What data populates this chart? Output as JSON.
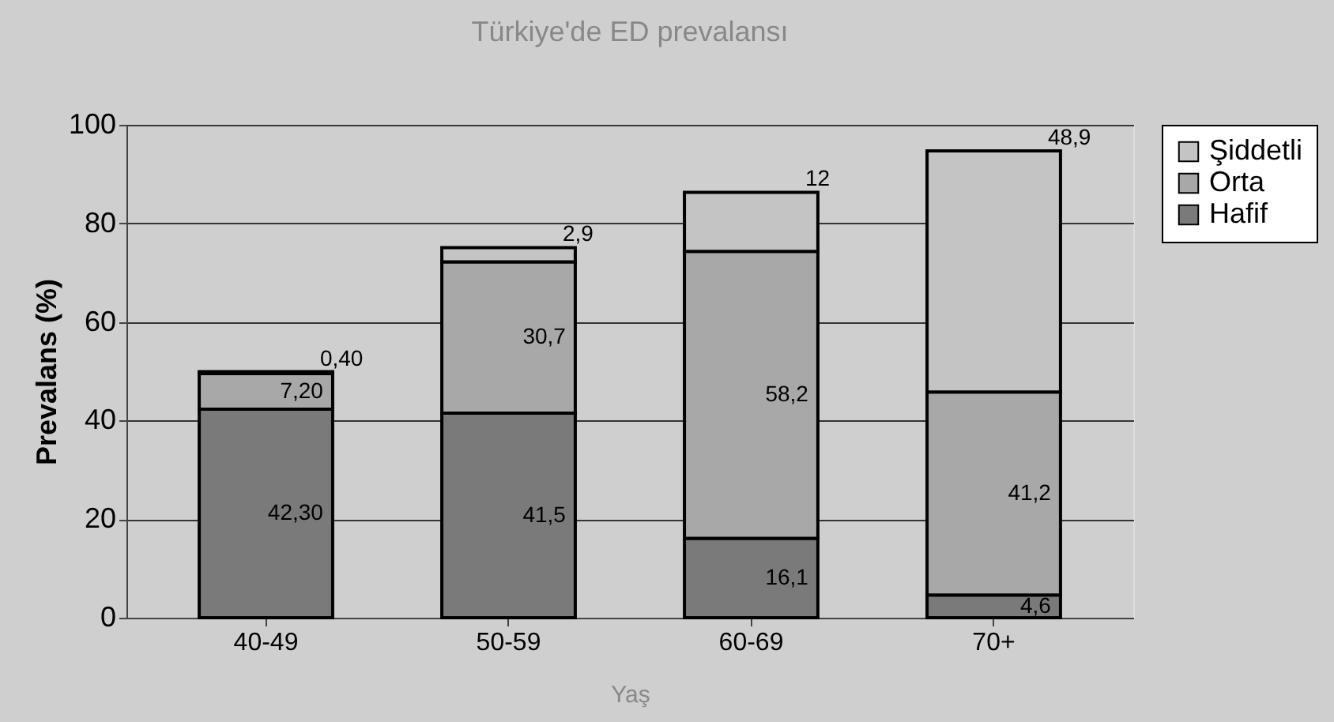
{
  "chart_data": {
    "type": "bar",
    "stacked": true,
    "title": "Türkiye'de ED prevalansı",
    "xlabel": "Yaş",
    "ylabel": "Prevalans (%)",
    "categories": [
      "40-49",
      "50-59",
      "60-69",
      "70+"
    ],
    "series": [
      {
        "name": "Hafif",
        "color": "#7a7a7a",
        "values": [
          42.3,
          41.5,
          16.1,
          4.6
        ],
        "value_labels": [
          "42,30",
          "41,5",
          "16,1",
          "4,6"
        ]
      },
      {
        "name": "Orta",
        "color": "#a8a8a8",
        "values": [
          7.2,
          30.7,
          58.2,
          41.2
        ],
        "value_labels": [
          "7,20",
          "30,7",
          "58,2",
          "41,2"
        ]
      },
      {
        "name": "Şiddetli",
        "color": "#c4c4c4",
        "values": [
          0.4,
          2.9,
          12,
          48.9
        ],
        "value_labels": [
          "0,40",
          "2,9",
          "12",
          "48,9"
        ]
      }
    ],
    "ylim": [
      0,
      100
    ],
    "yticks": [
      0,
      20,
      40,
      60,
      80,
      100
    ],
    "grid": "y",
    "legend": "right"
  }
}
